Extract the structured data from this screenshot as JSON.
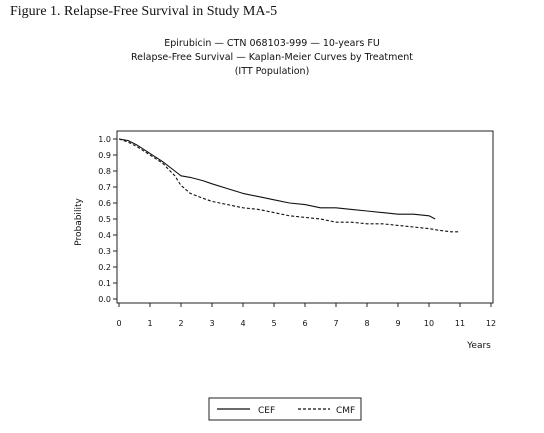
{
  "figure_caption": "Figure 1.  Relapse-Free Survival in Study MA-5",
  "chart_data": {
    "type": "line",
    "title_lines": [
      "Epirubicin — CTN 068103-999 — 10-years FU",
      "Relapse-Free Survival — Kaplan-Meier Curves by Treatment",
      "(ITT Population)"
    ],
    "xlabel": "Years",
    "ylabel": "Probability",
    "xlim": [
      0,
      12
    ],
    "ylim": [
      0,
      1.0
    ],
    "xticks": [
      "0",
      "1",
      "2",
      "3",
      "4",
      "5",
      "6",
      "7",
      "8",
      "9",
      "10",
      "11",
      "12"
    ],
    "yticks": [
      "0.0",
      "0.1",
      "0.2",
      "0.3",
      "0.4",
      "0.5",
      "0.6",
      "0.7",
      "0.8",
      "0.9",
      "1.0"
    ],
    "grid": false,
    "legend_position": "bottom",
    "series": [
      {
        "name": "CEF",
        "line_style": "solid",
        "color": "#111111",
        "x": [
          0,
          0.3,
          0.6,
          1.0,
          1.4,
          1.8,
          2.0,
          2.3,
          2.7,
          3.0,
          3.5,
          4.0,
          4.5,
          5.0,
          5.5,
          6.0,
          6.5,
          7.0,
          7.5,
          8.0,
          8.5,
          9.0,
          9.5,
          10.0,
          10.2
        ],
        "y": [
          1.0,
          0.99,
          0.96,
          0.91,
          0.86,
          0.8,
          0.77,
          0.76,
          0.74,
          0.72,
          0.69,
          0.66,
          0.64,
          0.62,
          0.6,
          0.59,
          0.57,
          0.57,
          0.56,
          0.55,
          0.54,
          0.53,
          0.53,
          0.52,
          0.5
        ]
      },
      {
        "name": "CMF",
        "line_style": "dashed",
        "color": "#111111",
        "x": [
          0,
          0.3,
          0.6,
          1.0,
          1.4,
          1.8,
          2.0,
          2.3,
          2.7,
          3.0,
          3.5,
          4.0,
          4.5,
          5.0,
          5.5,
          6.0,
          6.5,
          7.0,
          7.5,
          8.0,
          8.5,
          9.0,
          9.5,
          10.0,
          10.3,
          10.7,
          11.0
        ],
        "y": [
          1.0,
          0.98,
          0.95,
          0.9,
          0.85,
          0.77,
          0.71,
          0.66,
          0.63,
          0.61,
          0.59,
          0.57,
          0.56,
          0.54,
          0.52,
          0.51,
          0.5,
          0.48,
          0.48,
          0.47,
          0.47,
          0.46,
          0.45,
          0.44,
          0.43,
          0.42,
          0.42
        ]
      }
    ]
  }
}
